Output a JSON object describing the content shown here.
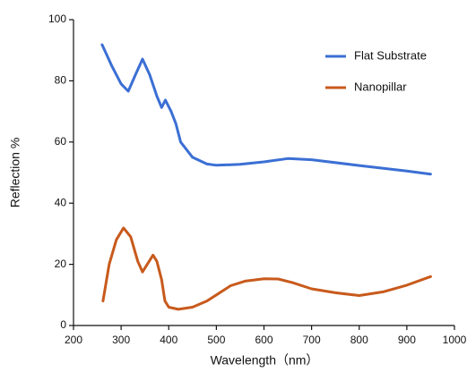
{
  "chart_data": {
    "type": "line",
    "x_label": "Wavelength（nm）",
    "y_label": "Reflection %",
    "xlim": [
      200,
      1000
    ],
    "xticks": [
      200,
      300,
      400,
      500,
      600,
      700,
      800,
      900,
      1000
    ],
    "ylim": [
      0,
      100
    ],
    "yticks": [
      0,
      20,
      40,
      60,
      80,
      100
    ],
    "legend": "upper-right",
    "series": [
      {
        "name": "Flat Substrate",
        "color": "#3b6fd4",
        "x": [
          260,
          280,
          300,
          315,
          330,
          345,
          360,
          375,
          385,
          393,
          405,
          415,
          425,
          450,
          480,
          500,
          550,
          600,
          650,
          700,
          800,
          900,
          950
        ],
        "values": [
          91.8,
          85,
          79,
          76.6,
          82,
          87.1,
          82,
          75,
          71.3,
          73.7,
          70,
          66,
          60,
          55,
          52.8,
          52.4,
          52.7,
          53.5,
          54.6,
          54.2,
          52.3,
          50.5,
          49.5
        ]
      },
      {
        "name": "Nanopillar",
        "color": "#c85a1c",
        "x": [
          262,
          275,
          290,
          305,
          320,
          335,
          345,
          355,
          367,
          375,
          385,
          392,
          400,
          420,
          450,
          480,
          500,
          530,
          560,
          600,
          630,
          660,
          700,
          750,
          800,
          850,
          900,
          950
        ],
        "values": [
          8,
          20,
          28,
          31.9,
          29,
          21,
          17.5,
          20,
          23,
          21,
          15,
          8,
          6,
          5.3,
          6,
          8,
          10,
          13,
          14.5,
          15.3,
          15.2,
          14,
          12,
          10.7,
          9.8,
          11,
          13.2,
          16
        ]
      }
    ]
  }
}
